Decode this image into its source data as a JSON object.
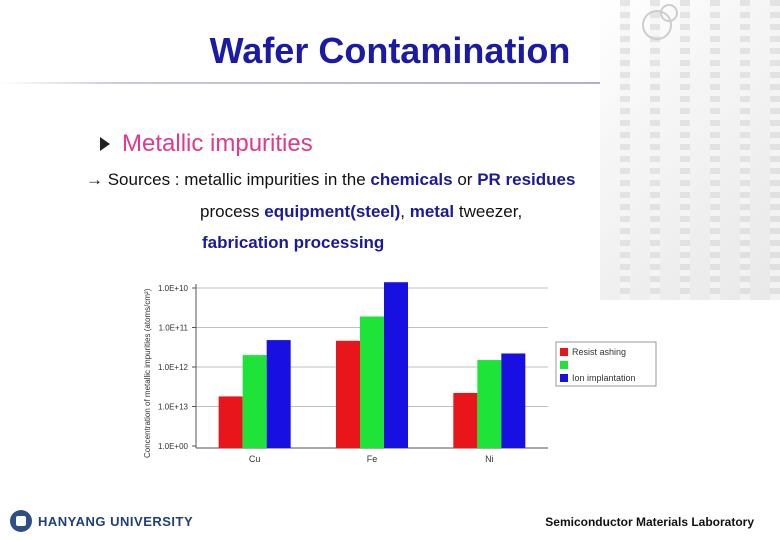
{
  "title": "Wafer Contamination",
  "bullet": "Metallic impurities",
  "sources": {
    "arrow": "→",
    "prefix": " Sources : metallic impurities in the ",
    "chemicals": "chemicals",
    "or": " or ",
    "pr": "PR residues",
    "l2_pre": "process ",
    "equip": "equipment(steel)",
    "l2_mid": ", ",
    "metal": "metal",
    "l2_post": " tweezer,",
    "line3": "fabrication processing"
  },
  "footer": {
    "university": "HANYANG UNIVERSITY",
    "lab": "Semiconductor Materials Laboratory"
  },
  "colors": {
    "title": "#1a1aa6",
    "bullet": "#e0398d",
    "highlight": "#1a1a9a",
    "series": [
      "#e8161b",
      "#1ee43a",
      "#1710e0"
    ]
  },
  "chart_data": {
    "type": "bar",
    "title": "",
    "xlabel": "",
    "ylabel": "Concentration of metallic impurities (atoms/cm²)",
    "categories": [
      "Cu",
      "Fe",
      "Ni"
    ],
    "series": [
      {
        "name": "Resist ashing",
        "values": [
          18000000000.0,
          460000000000.0,
          22000000000.0
        ]
      },
      {
        "name": "",
        "values": [
          200000000000.0,
          1900000000000.0,
          150000000000.0
        ]
      },
      {
        "name": "Ion implantation",
        "values": [
          480000000000.0,
          14000000000000.0,
          220000000000.0
        ]
      }
    ],
    "yscale": "log",
    "ylim": [
      1,
      10000000000000.0
    ],
    "yticks": [
      "1.0E+10",
      "1.0E+11",
      "1.0E+12",
      "1.0E+13",
      "1.0E+00"
    ],
    "legend": "right",
    "grid": true
  }
}
